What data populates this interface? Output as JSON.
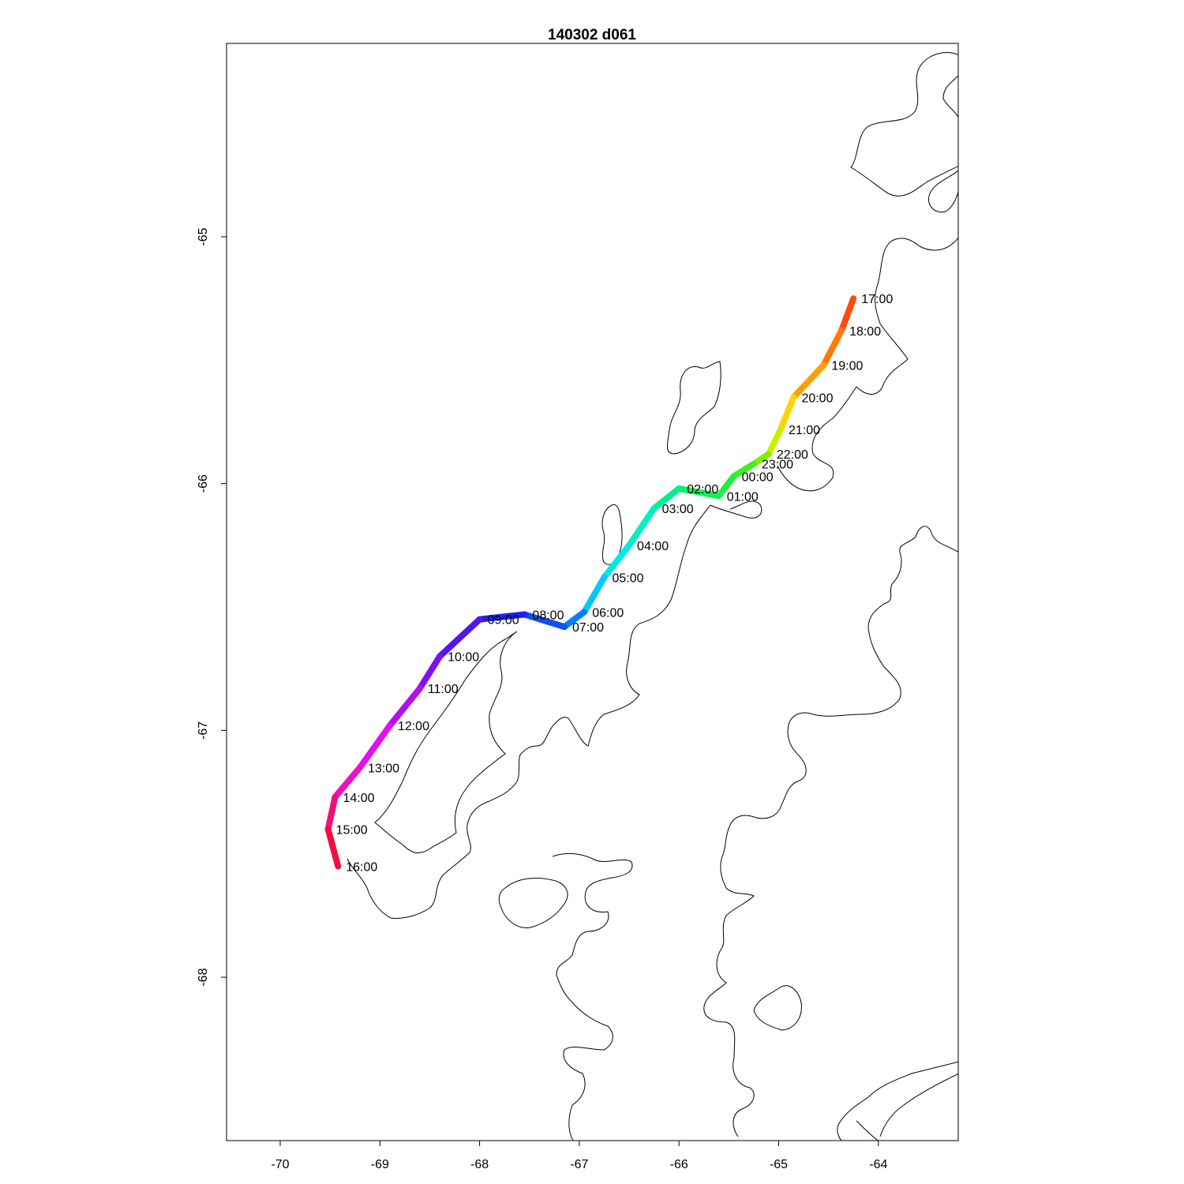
{
  "map": {
    "title": "140302   d061",
    "x_ticks": [
      "-70",
      "-69",
      "-68",
      "-67",
      "-66",
      "-65",
      "-64"
    ],
    "y_ticks": [
      "-65",
      "-66",
      "-67",
      "-68"
    ],
    "xlim": [
      -70.5,
      -63.2
    ],
    "ylim": [
      -68.65,
      -64.2
    ],
    "track_colors": "rainbow (red → orange → yellow → green → cyan → blue → magenta → red)",
    "track": [
      {
        "time": "17:00",
        "lon": -64.25,
        "lat": -65.25,
        "color": "#ff2020"
      },
      {
        "time": "18:00",
        "lon": -64.37,
        "lat": -65.38,
        "color": "#ff4a10"
      },
      {
        "time": "19:00",
        "lon": -64.55,
        "lat": -65.52,
        "color": "#ff7a00"
      },
      {
        "time": "20:00",
        "lon": -64.85,
        "lat": -65.65,
        "color": "#ffa000"
      },
      {
        "time": "21:00",
        "lon": -64.98,
        "lat": -65.78,
        "color": "#ffd400"
      },
      {
        "time": "22:00",
        "lon": -65.1,
        "lat": -65.88,
        "color": "#c8f000"
      },
      {
        "time": "23:00",
        "lon": -65.25,
        "lat": -65.92,
        "color": "#80f000"
      },
      {
        "time": "00:00",
        "lon": -65.45,
        "lat": -65.97,
        "color": "#40f020"
      },
      {
        "time": "01:00",
        "lon": -65.6,
        "lat": -66.05,
        "color": "#20f040"
      },
      {
        "time": "02:00",
        "lon": -66.0,
        "lat": -66.02,
        "color": "#10f060"
      },
      {
        "time": "03:00",
        "lon": -66.25,
        "lat": -66.1,
        "color": "#00f090"
      },
      {
        "time": "04:00",
        "lon": -66.5,
        "lat": -66.25,
        "color": "#00f0c0"
      },
      {
        "time": "05:00",
        "lon": -66.75,
        "lat": -66.38,
        "color": "#00e8e8"
      },
      {
        "time": "06:00",
        "lon": -66.95,
        "lat": -66.52,
        "color": "#00c8f8"
      },
      {
        "time": "07:00",
        "lon": -67.15,
        "lat": -66.58,
        "color": "#0080ff"
      },
      {
        "time": "08:00",
        "lon": -67.55,
        "lat": -66.53,
        "color": "#1050f0"
      },
      {
        "time": "09:00",
        "lon": -68.0,
        "lat": -66.55,
        "color": "#2020e8"
      },
      {
        "time": "10:00",
        "lon": -68.4,
        "lat": -66.7,
        "color": "#5018f0"
      },
      {
        "time": "11:00",
        "lon": -68.6,
        "lat": -66.83,
        "color": "#8010f0"
      },
      {
        "time": "12:00",
        "lon": -68.9,
        "lat": -66.98,
        "color": "#b010f0"
      },
      {
        "time": "13:00",
        "lon": -69.2,
        "lat": -67.15,
        "color": "#e010f0"
      },
      {
        "time": "14:00",
        "lon": -69.45,
        "lat": -67.27,
        "color": "#f010c0"
      },
      {
        "time": "15:00",
        "lon": -69.52,
        "lat": -67.4,
        "color": "#f01080"
      },
      {
        "time": "16:00",
        "lon": -69.42,
        "lat": -67.55,
        "color": "#f01040"
      }
    ]
  }
}
